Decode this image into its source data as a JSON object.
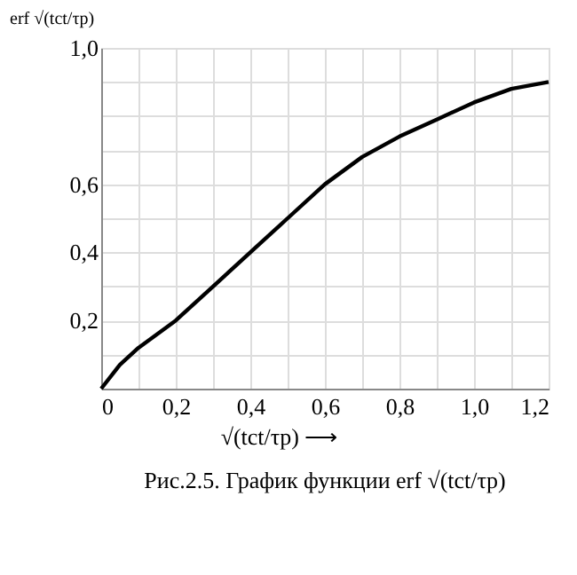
{
  "chart_data": {
    "type": "line",
    "xlabel": "√(tct/τp)  ⟶",
    "ylabel": "erf √(tct/τp)",
    "annotations": [
      "Рис.2.5. График функции erf √(tct/τp)"
    ],
    "x": [
      0,
      0.05,
      0.1,
      0.2,
      0.3,
      0.4,
      0.5,
      0.6,
      0.7,
      0.8,
      0.9,
      1.0,
      1.1,
      1.2
    ],
    "series": [
      {
        "color": "#000000",
        "values": [
          0,
          0.07,
          0.12,
          0.2,
          0.3,
          0.4,
          0.5,
          0.6,
          0.68,
          0.74,
          0.79,
          0.84,
          0.88,
          0.9
        ]
      }
    ],
    "xlim": [
      0,
      1.2
    ],
    "ylim": [
      0,
      1.0
    ],
    "xticks": [
      {
        "value": 0,
        "label": "0"
      },
      {
        "value": 0.1,
        "label": null
      },
      {
        "value": 0.2,
        "label": "0,2"
      },
      {
        "value": 0.3,
        "label": null
      },
      {
        "value": 0.4,
        "label": "0,4"
      },
      {
        "value": 0.5,
        "label": null
      },
      {
        "value": 0.6,
        "label": "0,6"
      },
      {
        "value": 0.7,
        "label": null
      },
      {
        "value": 0.8,
        "label": "0,8"
      },
      {
        "value": 0.9,
        "label": null
      },
      {
        "value": 1.0,
        "label": "1,0"
      },
      {
        "value": 1.1,
        "label": null
      },
      {
        "value": 1.2,
        "label": "1,2"
      }
    ],
    "yticks": [
      {
        "value": 0.1,
        "label": null
      },
      {
        "value": 0.2,
        "label": "0,2"
      },
      {
        "value": 0.3,
        "label": null
      },
      {
        "value": 0.4,
        "label": "0,4"
      },
      {
        "value": 0.5,
        "label": null
      },
      {
        "value": 0.6,
        "label": "0,6"
      },
      {
        "value": 0.7,
        "label": null
      },
      {
        "value": 0.8,
        "label": null
      },
      {
        "value": 0.9,
        "label": null
      },
      {
        "value": 1.0,
        "label": "1,0"
      }
    ],
    "grid": true,
    "marker": "none",
    "line_style": "solid"
  }
}
